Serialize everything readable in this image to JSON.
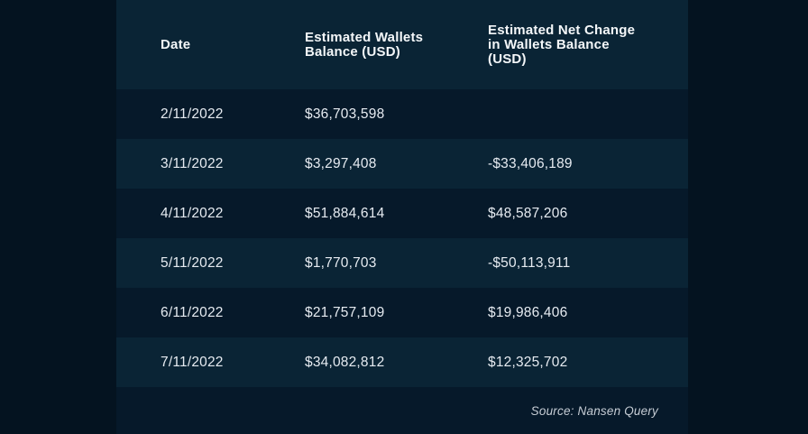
{
  "chart_data": {
    "type": "table",
    "columns": [
      "Date",
      "Estimated Wallets Balance (USD)",
      "Estimated Net Change in Wallets Balance (USD)"
    ],
    "rows": [
      {
        "date": "2/11/2022",
        "balance": "$36,703,598",
        "net_change": ""
      },
      {
        "date": "3/11/2022",
        "balance": "$3,297,408",
        "net_change": "-$33,406,189"
      },
      {
        "date": "4/11/2022",
        "balance": "$51,884,614",
        "net_change": "$48,587,206"
      },
      {
        "date": "5/11/2022",
        "balance": "$1,770,703",
        "net_change": "-$50,113,911"
      },
      {
        "date": "6/11/2022",
        "balance": "$21,757,109",
        "net_change": "$19,986,406"
      },
      {
        "date": "7/11/2022",
        "balance": "$34,082,812",
        "net_change": "$12,325,702"
      }
    ],
    "source": "Source: Nansen Query"
  },
  "colors": {
    "page-bg": "#041320",
    "row-dark": "#06192a",
    "row-light": "#0a2435",
    "text-main": "#e6ebf1",
    "text-header": "#f4f7f9",
    "text-source": "#c6cdd5"
  }
}
